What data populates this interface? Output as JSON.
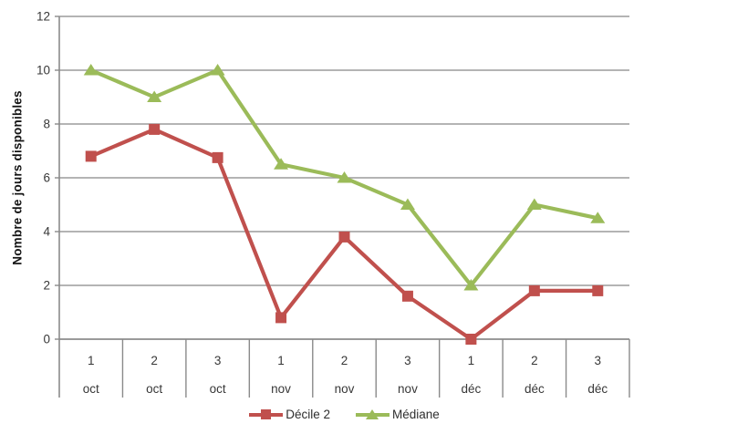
{
  "chart_data": {
    "type": "line",
    "title": "",
    "xlabel": "",
    "ylabel": "Nombre de jours disponibles",
    "ylim": [
      0,
      12
    ],
    "ytick_step": 2,
    "grid": true,
    "legend_position": "bottom",
    "categories": [
      {
        "label": "1",
        "group": "oct"
      },
      {
        "label": "2",
        "group": "oct"
      },
      {
        "label": "3",
        "group": "oct"
      },
      {
        "label": "1",
        "group": "nov"
      },
      {
        "label": "2",
        "group": "nov"
      },
      {
        "label": "3",
        "group": "nov"
      },
      {
        "label": "1",
        "group": "déc"
      },
      {
        "label": "2",
        "group": "déc"
      },
      {
        "label": "3",
        "group": "déc"
      }
    ],
    "series": [
      {
        "name": "Décile 2",
        "color": "#C0504D",
        "marker": "square",
        "values": [
          6.8,
          7.8,
          6.75,
          0.8,
          3.8,
          1.6,
          0,
          1.8,
          1.8
        ]
      },
      {
        "name": "Médiane",
        "color": "#9BBB59",
        "marker": "triangle",
        "values": [
          10,
          9,
          10,
          6.5,
          6,
          5,
          2,
          5,
          4.5
        ]
      }
    ]
  },
  "colors": {
    "gridline": "#9c9c9c",
    "axis": "#8a8a8a",
    "tick_text": "#383838",
    "axis_title_text": "#141414"
  }
}
